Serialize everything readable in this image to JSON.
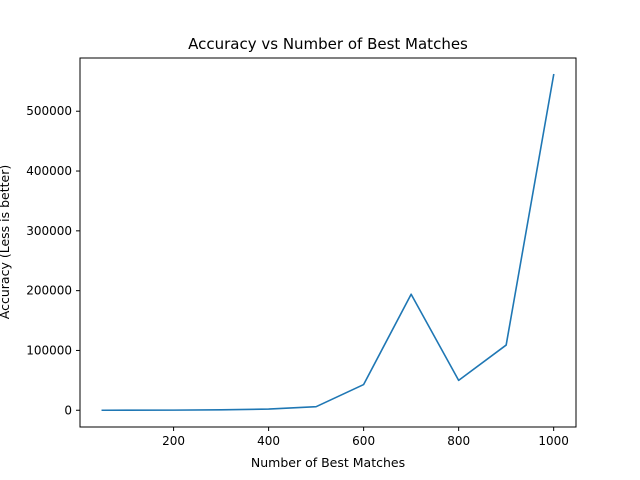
{
  "chart_data": {
    "type": "line",
    "title": "Accuracy vs Number of Best Matches",
    "xlabel": "Number of Best Matches",
    "ylabel": "Accuracy (Less is better)",
    "xlim": [
      3,
      1047
    ],
    "ylim": [
      -28000,
      589000
    ],
    "xticks": [
      200,
      400,
      600,
      800,
      1000
    ],
    "yticks": [
      0,
      100000,
      200000,
      300000,
      400000,
      500000
    ],
    "grid": false,
    "legend": "none",
    "series": [
      {
        "color": "#1f77b4",
        "x": [
          50,
          100,
          200,
          300,
          400,
          500,
          600,
          700,
          800,
          900,
          1000
        ],
        "y": [
          0,
          100,
          200,
          800,
          2000,
          6000,
          43000,
          194000,
          50000,
          109000,
          561000
        ]
      }
    ]
  }
}
